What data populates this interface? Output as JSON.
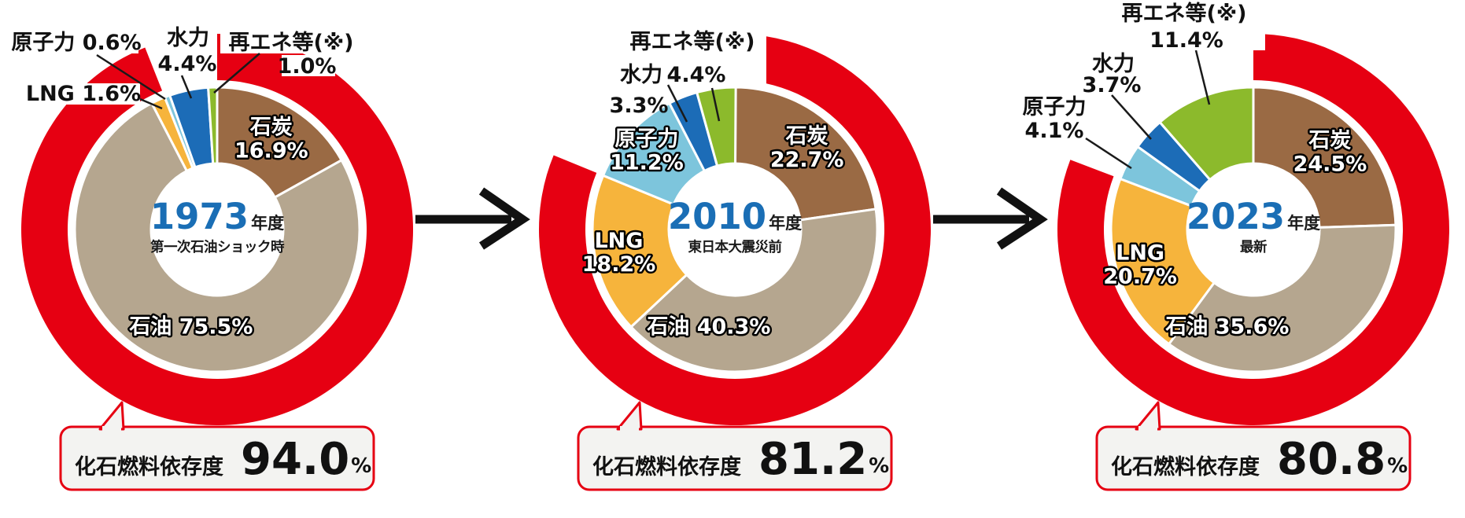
{
  "colors": {
    "ring": "#e60012",
    "year_text": "#1a6eb5",
    "callout_bg": "#f3f3f1",
    "callout_border": "#e60012",
    "leader_line": "#1a1a1a",
    "arrow": "#111111",
    "segments": {
      "coal": "#9a6a44",
      "oil": "#b5a68f",
      "lng": "#f6b43c",
      "nuclear": "#7dc5dc",
      "hydro": "#1c6cb7",
      "renewables": "#8cba2c"
    }
  },
  "chart_data": [
    {
      "type": "pie",
      "year": "1973",
      "year_suffix": "年度",
      "subtitle": "第一次石油ショック時",
      "categories": [
        "石炭",
        "石油",
        "LNG",
        "原子力",
        "水力",
        "再エネ等(※)"
      ],
      "values": [
        16.9,
        75.5,
        1.6,
        0.6,
        4.4,
        1.0
      ],
      "segments": [
        {
          "key": "coal",
          "name": "石炭",
          "value": 16.9,
          "share": "16.9%"
        },
        {
          "key": "oil",
          "name": "石油",
          "value": 75.5,
          "share": "75.5%"
        },
        {
          "key": "lng",
          "name": "LNG",
          "value": 1.6,
          "share": "1.6%"
        },
        {
          "key": "nuclear",
          "name": "原子力",
          "value": 0.6,
          "share": "0.6%"
        },
        {
          "key": "hydro",
          "name": "水力",
          "value": 4.4,
          "share": "4.4%"
        },
        {
          "key": "renewables",
          "name": "再エネ等(※)",
          "value": 1.0,
          "share": "1.0%"
        }
      ],
      "fossil_dependency": {
        "label": "化石燃料依存度",
        "value": "94.0",
        "unit": "%"
      }
    },
    {
      "type": "pie",
      "year": "2010",
      "year_suffix": "年度",
      "subtitle": "東日本大震災前",
      "categories": [
        "石炭",
        "石油",
        "LNG",
        "原子力",
        "水力",
        "再エネ等(※)"
      ],
      "values": [
        22.7,
        40.3,
        18.2,
        11.2,
        3.3,
        4.4
      ],
      "segments": [
        {
          "key": "coal",
          "name": "石炭",
          "value": 22.7,
          "share": "22.7%"
        },
        {
          "key": "oil",
          "name": "石油",
          "value": 40.3,
          "share": "40.3%"
        },
        {
          "key": "lng",
          "name": "LNG",
          "value": 18.2,
          "share": "18.2%"
        },
        {
          "key": "nuclear",
          "name": "原子力",
          "value": 11.2,
          "share": "11.2%"
        },
        {
          "key": "hydro",
          "name": "水力",
          "value": 3.3,
          "share": "3.3%"
        },
        {
          "key": "renewables",
          "name": "再エネ等(※)",
          "value": 4.4,
          "share": "4.4%"
        }
      ],
      "fossil_dependency": {
        "label": "化石燃料依存度",
        "value": "81.2",
        "unit": "%"
      }
    },
    {
      "type": "pie",
      "year": "2023",
      "year_suffix": "年度",
      "subtitle": "最新",
      "categories": [
        "石炭",
        "石油",
        "LNG",
        "原子力",
        "水力",
        "再エネ等(※)"
      ],
      "values": [
        24.5,
        35.6,
        20.7,
        4.1,
        3.7,
        11.4
      ],
      "segments": [
        {
          "key": "coal",
          "name": "石炭",
          "value": 24.5,
          "share": "24.5%"
        },
        {
          "key": "oil",
          "name": "石油",
          "value": 35.6,
          "share": "35.6%"
        },
        {
          "key": "lng",
          "name": "LNG",
          "value": 20.7,
          "share": "20.7%"
        },
        {
          "key": "nuclear",
          "name": "原子力",
          "value": 4.1,
          "share": "4.1%"
        },
        {
          "key": "hydro",
          "name": "水力",
          "value": 3.7,
          "share": "3.7%"
        },
        {
          "key": "renewables",
          "name": "再エネ等(※)",
          "value": 11.4,
          "share": "11.4%"
        }
      ],
      "fossil_dependency": {
        "label": "化石燃料依存度",
        "value": "80.8",
        "unit": "%"
      }
    }
  ]
}
